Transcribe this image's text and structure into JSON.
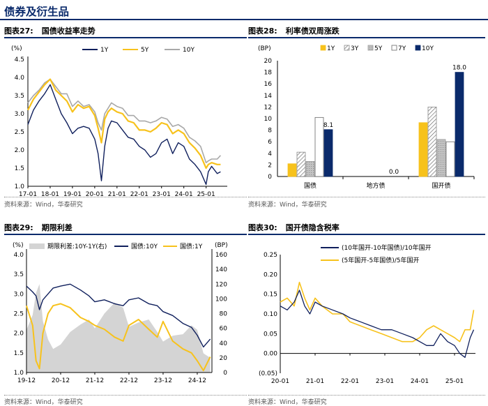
{
  "page": {
    "title": "债券及衍生品"
  },
  "panels": [
    {
      "label": "图表27:",
      "title": "国债收益率走势",
      "source": "资料来源：Wind，华泰研究"
    },
    {
      "label": "图表28:",
      "title": "利率债双周涨跌",
      "source": "资料来源：Wind，华泰研究"
    },
    {
      "label": "图表29:",
      "title": "期限利差",
      "source": "资料来源：Wind，华泰研究"
    },
    {
      "label": "图表30:",
      "title": "国开债隐含税率",
      "source": "资料来源：Wind，华泰研究"
    }
  ],
  "colors": {
    "navy": "#0f1f5c",
    "gold": "#f7c21c",
    "gray": "#a8a8a8",
    "area": "#d4d4d4",
    "darkblue": "#0a2a6b"
  },
  "chart_data": [
    {
      "type": "line",
      "id": "chart27",
      "unit_label": "(%)",
      "ylim": [
        1.0,
        4.5
      ],
      "yticks": [
        "1.0",
        "1.5",
        "2.0",
        "2.5",
        "3.0",
        "3.5",
        "4.0",
        "4.5"
      ],
      "xticks": [
        "17-01",
        "18-01",
        "19-01",
        "20-01",
        "21-01",
        "22-01",
        "23-01",
        "24-01",
        "25-01"
      ],
      "legend": [
        "1Y",
        "5Y",
        "10Y"
      ],
      "x": [
        2017.0,
        2017.25,
        2017.5,
        2017.75,
        2018.0,
        2018.25,
        2018.5,
        2018.75,
        2019.0,
        2019.25,
        2019.5,
        2019.75,
        2020.0,
        2020.15,
        2020.3,
        2020.45,
        2020.6,
        2020.75,
        2021.0,
        2021.25,
        2021.5,
        2021.75,
        2022.0,
        2022.25,
        2022.5,
        2022.75,
        2023.0,
        2023.25,
        2023.5,
        2023.75,
        2024.0,
        2024.25,
        2024.5,
        2024.75,
        2025.0,
        2025.1,
        2025.25,
        2025.5,
        2025.65
      ],
      "series": [
        {
          "name": "1Y",
          "values": [
            2.7,
            3.1,
            3.35,
            3.55,
            3.8,
            3.4,
            3.0,
            2.75,
            2.45,
            2.6,
            2.65,
            2.6,
            2.3,
            1.9,
            1.15,
            2.1,
            2.6,
            2.8,
            2.75,
            2.55,
            2.35,
            2.3,
            2.1,
            2.0,
            1.8,
            1.9,
            2.2,
            2.3,
            1.9,
            2.2,
            2.1,
            1.75,
            1.6,
            1.4,
            1.05,
            1.4,
            1.55,
            1.35,
            1.4
          ]
        },
        {
          "name": "5Y",
          "values": [
            3.1,
            3.4,
            3.6,
            3.8,
            3.95,
            3.65,
            3.5,
            3.35,
            3.05,
            3.25,
            3.15,
            3.2,
            2.95,
            2.6,
            2.2,
            2.85,
            3.05,
            3.15,
            3.05,
            3.0,
            2.8,
            2.75,
            2.55,
            2.55,
            2.5,
            2.6,
            2.75,
            2.7,
            2.45,
            2.55,
            2.45,
            2.2,
            2.05,
            1.85,
            1.5,
            1.6,
            1.65,
            1.6,
            1.6
          ]
        },
        {
          "name": "10Y",
          "values": [
            3.3,
            3.5,
            3.65,
            3.85,
            3.95,
            3.75,
            3.55,
            3.55,
            3.2,
            3.35,
            3.2,
            3.25,
            3.05,
            2.75,
            2.55,
            3.0,
            3.15,
            3.3,
            3.2,
            3.15,
            2.95,
            2.95,
            2.8,
            2.8,
            2.75,
            2.8,
            2.9,
            2.85,
            2.65,
            2.7,
            2.6,
            2.35,
            2.25,
            2.1,
            1.65,
            1.7,
            1.75,
            1.75,
            1.85
          ]
        }
      ]
    },
    {
      "type": "bar",
      "id": "chart28",
      "unit_label": "(BP)",
      "ylim": [
        0,
        20
      ],
      "yticks": [
        "0",
        "2",
        "4",
        "6",
        "8",
        "10",
        "12",
        "14",
        "16",
        "18",
        "20"
      ],
      "categories": [
        "国债",
        "地方债",
        "国开债"
      ],
      "legend": [
        "1Y",
        "3Y",
        "5Y",
        "7Y",
        "10Y"
      ],
      "series": [
        {
          "name": "1Y",
          "values": [
            2.2,
            0,
            9.3
          ]
        },
        {
          "name": "3Y",
          "values": [
            4.2,
            0,
            12.0
          ]
        },
        {
          "name": "5Y",
          "values": [
            2.6,
            0,
            6.4
          ]
        },
        {
          "name": "7Y",
          "values": [
            10.2,
            0,
            6.0
          ]
        },
        {
          "name": "10Y",
          "values": [
            8.1,
            0,
            18.0
          ]
        }
      ],
      "data_labels": [
        "8.1",
        "0.0",
        "18.0"
      ]
    },
    {
      "type": "line",
      "id": "chart29",
      "unit_label_left": "(%)",
      "unit_label_right": "(BP)",
      "ylim_left": [
        1.0,
        4.0
      ],
      "ylim_right": [
        0,
        160
      ],
      "yticks_left": [
        "1.0",
        "1.5",
        "2.0",
        "2.5",
        "3.0",
        "3.5",
        "4.0"
      ],
      "yticks_right": [
        "0",
        "20",
        "40",
        "60",
        "80",
        "100",
        "120",
        "140",
        "160"
      ],
      "xticks": [
        "19-12",
        "20-12",
        "21-12",
        "22-12",
        "23-12",
        "24-12"
      ],
      "legend": [
        "期限利差:10Y-1Y(右)",
        "国债:10Y",
        "国债:1Y"
      ],
      "x": [
        2019.92,
        2020.1,
        2020.2,
        2020.3,
        2020.4,
        2020.55,
        2020.7,
        2020.92,
        2021.2,
        2021.5,
        2021.75,
        2021.92,
        2022.2,
        2022.5,
        2022.75,
        2022.92,
        2023.2,
        2023.5,
        2023.75,
        2023.92,
        2024.2,
        2024.5,
        2024.75,
        2024.92,
        2025.1,
        2025.3
      ],
      "series": [
        {
          "name": "期限利差:10Y-1Y(右)",
          "values": [
            58,
            78,
            108,
            120,
            70,
            45,
            32,
            38,
            55,
            65,
            72,
            60,
            80,
            95,
            88,
            62,
            68,
            72,
            55,
            42,
            50,
            52,
            64,
            58,
            26,
            20
          ],
          "axis": "right"
        },
        {
          "name": "国债:10Y",
          "values": [
            3.2,
            3.05,
            2.95,
            2.6,
            2.85,
            3.0,
            3.15,
            3.2,
            3.25,
            3.1,
            2.95,
            2.8,
            2.85,
            2.75,
            2.7,
            2.85,
            2.9,
            2.75,
            2.7,
            2.55,
            2.45,
            2.25,
            2.15,
            1.95,
            1.65,
            1.85
          ],
          "axis": "left"
        },
        {
          "name": "国债:1Y",
          "values": [
            2.7,
            2.2,
            1.3,
            1.1,
            2.0,
            2.5,
            2.7,
            2.75,
            2.65,
            2.4,
            2.3,
            2.2,
            2.1,
            1.9,
            1.8,
            2.2,
            2.35,
            2.1,
            1.9,
            2.3,
            1.8,
            1.6,
            1.5,
            1.3,
            1.05,
            1.4
          ],
          "axis": "left"
        }
      ]
    },
    {
      "type": "line",
      "id": "chart30",
      "ylim": [
        -0.05,
        0.25
      ],
      "yticks": [
        "(0.05)",
        "0.00",
        "0.05",
        "0.10",
        "0.15",
        "0.20",
        "0.25"
      ],
      "xticks": [
        "20-01",
        "21-01",
        "22-01",
        "23-01",
        "24-01",
        "25-01"
      ],
      "legend": [
        "(10年国开-10年国债)/10年国开",
        "(5年国开-5年国债)/5年国开"
      ],
      "x": [
        2020.0,
        2020.2,
        2020.4,
        2020.55,
        2020.7,
        2020.85,
        2021.0,
        2021.2,
        2021.5,
        2021.8,
        2022.0,
        2022.3,
        2022.6,
        2022.9,
        2023.2,
        2023.5,
        2023.8,
        2024.0,
        2024.2,
        2024.4,
        2024.6,
        2024.8,
        2025.0,
        2025.15,
        2025.3,
        2025.45,
        2025.55
      ],
      "series": [
        {
          "name": "(10年国开-10年国债)/10年国开",
          "values": [
            0.12,
            0.11,
            0.13,
            0.16,
            0.12,
            0.1,
            0.13,
            0.12,
            0.11,
            0.1,
            0.09,
            0.08,
            0.07,
            0.06,
            0.06,
            0.05,
            0.04,
            0.03,
            0.02,
            0.02,
            0.05,
            0.03,
            0.02,
            0.0,
            -0.01,
            0.04,
            0.06
          ]
        },
        {
          "name": "(5年国开-5年国债)/5年国开",
          "values": [
            0.13,
            0.14,
            0.12,
            0.18,
            0.14,
            0.11,
            0.14,
            0.12,
            0.1,
            0.1,
            0.08,
            0.07,
            0.06,
            0.05,
            0.04,
            0.03,
            0.03,
            0.04,
            0.06,
            0.07,
            0.06,
            0.05,
            0.04,
            0.03,
            0.06,
            0.06,
            0.11
          ]
        }
      ]
    }
  ]
}
